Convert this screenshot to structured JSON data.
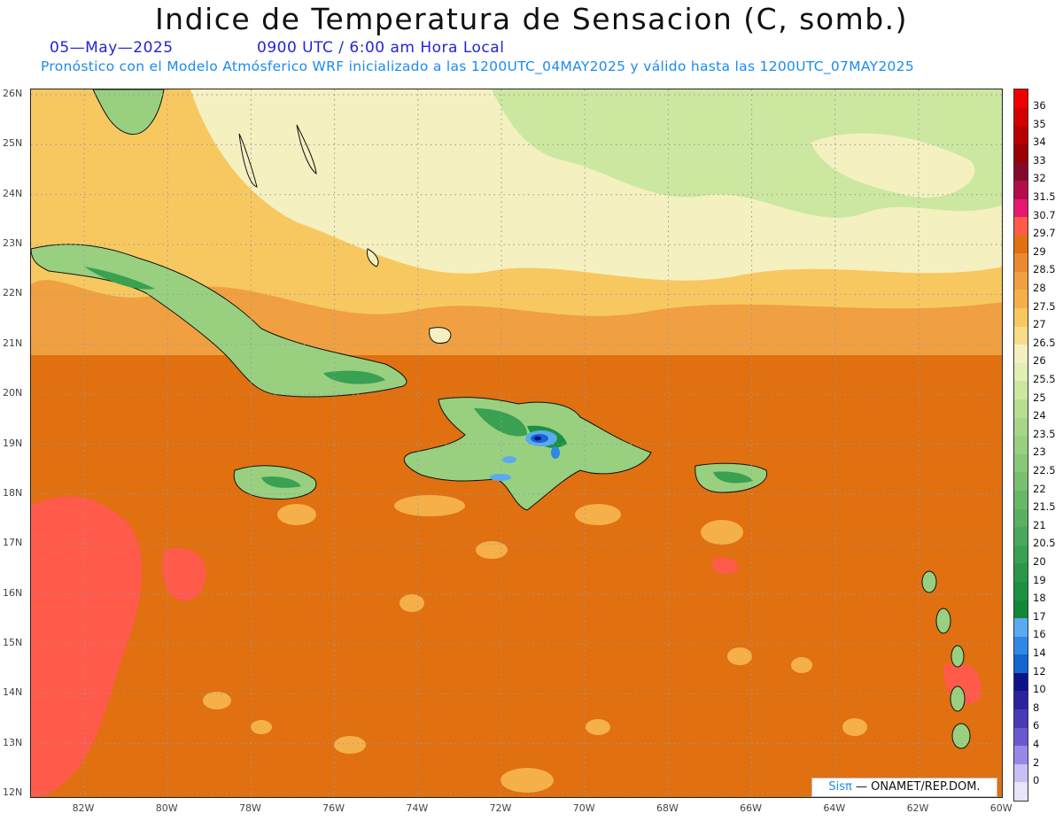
{
  "title": "Indice de Temperatura de Sensacion (C, somb.)",
  "date": "05—May—2025",
  "time": "0900 UTC / 6:00 am Hora Local",
  "subtitle": "Pronóstico con el Modelo Atmósferico WRF inicializado a las 1200UTC_04MAY2025 y válido hasta las  1200UTC_07MAY2025",
  "lat_ticks": [
    "26N",
    "25N",
    "24N",
    "23N",
    "22N",
    "21N",
    "20N",
    "19N",
    "18N",
    "17N",
    "16N",
    "15N",
    "14N",
    "13N",
    "12N"
  ],
  "lon_ticks": [
    "82W",
    "80W",
    "78W",
    "76W",
    "74W",
    "72W",
    "70W",
    "68W",
    "66W",
    "64W",
    "62W",
    "60W"
  ],
  "legend": {
    "labels": [
      "36",
      "35",
      "34",
      "33",
      "32",
      "31.5",
      "30.7",
      "29.7",
      "29",
      "28.5",
      "28",
      "27.5",
      "27",
      "26.5",
      "26",
      "25.5",
      "25",
      "24",
      "23.5",
      "23",
      "22.5",
      "22",
      "21.5",
      "21",
      "20.5",
      "20",
      "19",
      "18",
      "17",
      "16",
      "14",
      "12",
      "10",
      "8",
      "6",
      "4",
      "2",
      "0"
    ],
    "colors": [
      "#f00000",
      "#d40000",
      "#b80000",
      "#9a0000",
      "#840a2a",
      "#b30c4a",
      "#e8186e",
      "#ff5a4a",
      "#e07010",
      "#ea8a30",
      "#f0a040",
      "#f5b04a",
      "#f8c860",
      "#f8dc88",
      "#f4f0c0",
      "#e2f0b4",
      "#cce8a0",
      "#b8de90",
      "#a8d688",
      "#98d080",
      "#88c878",
      "#78c070",
      "#68b868",
      "#5ab062",
      "#4aa85a",
      "#3aa052",
      "#2a9848",
      "#1c9040",
      "#108838",
      "#5aaaf0",
      "#2e88e6",
      "#1464d2",
      "#0a1488",
      "#2a22a0",
      "#4a3ab8",
      "#6a5ad0",
      "#9888e8",
      "#c8c0f4",
      "#e8e4fa"
    ]
  },
  "credit": {
    "prefix": "Sisπ",
    "suffix": "— ONAMET/REP.DOM."
  },
  "map": {
    "domain": "Caribbean 83W-60W, 12N-26N"
  }
}
